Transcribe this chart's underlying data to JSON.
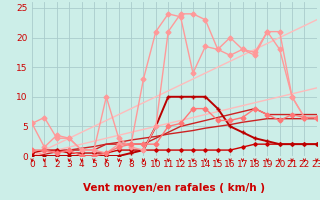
{
  "xlabel": "Vent moyen/en rafales ( km/h )",
  "xlim": [
    0,
    23
  ],
  "ylim": [
    0,
    26
  ],
  "xticks": [
    0,
    1,
    2,
    3,
    4,
    5,
    6,
    7,
    8,
    9,
    10,
    11,
    12,
    13,
    14,
    15,
    16,
    17,
    18,
    19,
    20,
    21,
    22,
    23
  ],
  "yticks": [
    0,
    5,
    10,
    15,
    20,
    25
  ],
  "background_color": "#cceee8",
  "grid_color": "#aacccc",
  "series": [
    {
      "x": [
        0,
        1,
        2,
        3,
        4,
        5,
        6,
        7,
        8,
        9,
        10,
        11,
        12,
        13,
        14,
        15,
        16,
        17,
        18,
        19,
        20,
        21,
        22,
        23
      ],
      "y": [
        0.5,
        1,
        1,
        0.5,
        0.5,
        0.5,
        0.5,
        1,
        1,
        1,
        1,
        1,
        1,
        1,
        1,
        1,
        1,
        1.5,
        2,
        2,
        2,
        2,
        2,
        2
      ],
      "color": "#cc0000",
      "lw": 1.0,
      "marker": "D",
      "ms": 1.8
    },
    {
      "x": [
        0,
        1,
        2,
        3,
        4,
        5,
        6,
        7,
        8,
        9,
        10,
        11,
        12,
        13,
        14,
        15,
        16,
        17,
        18,
        19,
        20,
        21,
        22,
        23
      ],
      "y": [
        0,
        0,
        0,
        0,
        0,
        0,
        0,
        0,
        0.5,
        1,
        5,
        10,
        10,
        10,
        10,
        8,
        5,
        4,
        3,
        2.5,
        2,
        2,
        2,
        2
      ],
      "color": "#bb0000",
      "lw": 1.4,
      "marker": "+",
      "ms": 3.0
    },
    {
      "x": [
        0,
        1,
        2,
        3,
        4,
        5,
        6,
        7,
        8,
        9,
        10,
        11,
        12,
        13,
        14,
        15,
        16,
        17,
        18,
        19,
        20,
        21,
        22,
        23
      ],
      "y": [
        0,
        0.5,
        1,
        1,
        1,
        1,
        2,
        2,
        2,
        2,
        3,
        4,
        5,
        5.5,
        6,
        6.5,
        7,
        7.5,
        8,
        7,
        7,
        7,
        7,
        7
      ],
      "color": "#cc2222",
      "lw": 1.0,
      "marker": null,
      "ms": 0
    },
    {
      "x": [
        0,
        1,
        2,
        3,
        4,
        5,
        6,
        7,
        8,
        9,
        10,
        11,
        12,
        13,
        14,
        15,
        16,
        17,
        18,
        19,
        20,
        21,
        22,
        23
      ],
      "y": [
        0,
        0.3,
        0.7,
        1,
        1.3,
        1.6,
        2,
        2.3,
        2.7,
        3,
        3.3,
        3.7,
        4,
        4.3,
        4.7,
        5,
        5.3,
        5.7,
        6,
        6.3,
        6.3,
        6.3,
        6.3,
        6.3
      ],
      "color": "#cc2222",
      "lw": 1.0,
      "marker": null,
      "ms": 0
    },
    {
      "x": [
        0,
        1,
        2,
        3,
        4,
        5,
        6,
        7,
        8,
        9,
        10,
        11,
        12,
        13,
        14,
        15,
        16,
        17,
        18,
        19,
        20,
        21,
        22,
        23
      ],
      "y": [
        5.5,
        6.5,
        3,
        3,
        1,
        1,
        10,
        3,
        1.5,
        1,
        5,
        21,
        24,
        24,
        23,
        18,
        20,
        18,
        17,
        21,
        18,
        10,
        6.5,
        6.5
      ],
      "color": "#ff9999",
      "lw": 1.0,
      "marker": "D",
      "ms": 2.5
    },
    {
      "x": [
        0,
        1,
        2,
        3,
        4,
        5,
        6,
        7,
        8,
        9,
        10,
        11,
        12,
        13,
        14,
        15,
        16,
        17,
        18,
        19,
        20,
        21,
        22,
        23
      ],
      "y": [
        5.5,
        1.5,
        3.5,
        3,
        1,
        1,
        0.5,
        2,
        2,
        13,
        21,
        24,
        23.5,
        14,
        18.5,
        18,
        17,
        18,
        17.5,
        21,
        21,
        10,
        6.5,
        6.5
      ],
      "color": "#ff9999",
      "lw": 1.0,
      "marker": "D",
      "ms": 2.5
    },
    {
      "x": [
        0,
        1,
        2,
        3,
        4,
        5,
        6,
        7,
        8,
        9,
        10,
        11,
        12,
        13,
        14,
        15,
        16,
        17,
        18,
        19,
        20,
        21,
        22,
        23
      ],
      "y": [
        1,
        1,
        0.5,
        1,
        0,
        0,
        0.5,
        1.5,
        2,
        2,
        2,
        5,
        5.5,
        8,
        8,
        6,
        6,
        6.5,
        8,
        7,
        6,
        7,
        6.5,
        6.5
      ],
      "color": "#ff7777",
      "lw": 1.0,
      "marker": "D",
      "ms": 2.5
    },
    {
      "x": [
        0,
        1,
        2,
        3,
        4,
        5,
        6,
        7,
        8,
        9,
        10,
        11,
        12,
        13,
        14,
        15,
        16,
        17,
        18,
        19,
        20,
        21,
        22,
        23
      ],
      "y": [
        0,
        1,
        2,
        3,
        4,
        5,
        6,
        7,
        8,
        9,
        10,
        11,
        12,
        13,
        14,
        15,
        16,
        17,
        18,
        19,
        20,
        21,
        22,
        23
      ],
      "color": "#ffbbbb",
      "lw": 1.0,
      "marker": null,
      "ms": 0
    },
    {
      "x": [
        0,
        1,
        2,
        3,
        4,
        5,
        6,
        7,
        8,
        9,
        10,
        11,
        12,
        13,
        14,
        15,
        16,
        17,
        18,
        19,
        20,
        21,
        22,
        23
      ],
      "y": [
        0,
        0.5,
        1,
        1.5,
        2,
        2.5,
        3,
        3.5,
        4,
        4.5,
        5,
        5.5,
        6,
        6.5,
        7,
        7.5,
        8,
        8.5,
        9,
        9.5,
        10,
        10.5,
        11,
        11.5
      ],
      "color": "#ffbbbb",
      "lw": 1.0,
      "marker": null,
      "ms": 0
    }
  ],
  "arrow_color": "#cc0000",
  "xlabel_color": "#cc0000",
  "xlabel_fontsize": 7.5,
  "tick_fontsize": 6.5
}
